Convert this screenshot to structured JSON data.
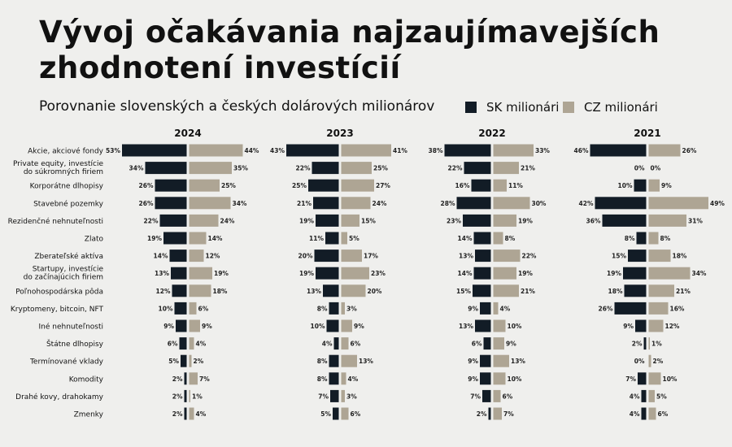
{
  "title_lines": [
    "Vývoj očakávania najzaujímavejších",
    "zhodnotení investícií"
  ],
  "subtitle": "Porovnanie slovenských a českých dolárových milionárov",
  "colors": {
    "sk": "#121c26",
    "cz": "#aea594",
    "background": "#efefed"
  },
  "chart_data": {
    "type": "bar",
    "orientation": "horizontal-diverging",
    "unit": "%",
    "legend": [
      {
        "name": "SK milionári",
        "color": "#121c26"
      },
      {
        "name": "CZ milionári",
        "color": "#aea594"
      }
    ],
    "legend_placement": "top-right",
    "categories": [
      [
        "Akcie, akciové fondy"
      ],
      [
        "Private equity, investície",
        "do súkromných firiem"
      ],
      [
        "Korporátne dlhopisy"
      ],
      [
        "Stavebné pozemky"
      ],
      [
        "Rezidenčné nehnuteľnosti"
      ],
      [
        "Zlato"
      ],
      [
        "Zberateľské aktíva"
      ],
      [
        "Startupy, investície",
        "do začínajúcich firiem"
      ],
      [
        "Poľnohospodárska pôda"
      ],
      [
        "Kryptomeny, bitcoin, NFT"
      ],
      [
        "Iné nehnuteľnosti"
      ],
      [
        "Štátne dlhopisy"
      ],
      [
        "Termínované vklady"
      ],
      [
        "Komodity"
      ],
      [
        "Drahé kovy, drahokamy"
      ],
      [
        "Zmenky"
      ]
    ],
    "panels": [
      {
        "year": "2024",
        "sk": [
          53,
          34,
          26,
          26,
          22,
          19,
          14,
          13,
          12,
          10,
          9,
          6,
          5,
          2,
          2,
          2
        ],
        "cz": [
          44,
          35,
          25,
          34,
          24,
          14,
          12,
          19,
          18,
          6,
          9,
          4,
          2,
          7,
          1,
          4
        ]
      },
      {
        "year": "2023",
        "sk": [
          43,
          22,
          25,
          21,
          19,
          11,
          20,
          19,
          13,
          8,
          10,
          4,
          8,
          8,
          7,
          5
        ],
        "cz": [
          41,
          25,
          27,
          24,
          15,
          5,
          17,
          23,
          20,
          3,
          9,
          6,
          13,
          4,
          3,
          6
        ]
      },
      {
        "year": "2022",
        "sk": [
          38,
          22,
          16,
          28,
          23,
          14,
          13,
          14,
          15,
          9,
          13,
          6,
          9,
          9,
          7,
          2
        ],
        "cz": [
          33,
          21,
          11,
          30,
          19,
          8,
          22,
          19,
          21,
          4,
          10,
          9,
          13,
          10,
          6,
          7
        ]
      },
      {
        "year": "2021",
        "sk": [
          46,
          0,
          10,
          42,
          36,
          8,
          15,
          19,
          18,
          26,
          9,
          2,
          0,
          7,
          4,
          4
        ],
        "cz": [
          26,
          0,
          9,
          49,
          31,
          8,
          18,
          34,
          21,
          16,
          12,
          1,
          2,
          10,
          5,
          6
        ]
      }
    ]
  }
}
